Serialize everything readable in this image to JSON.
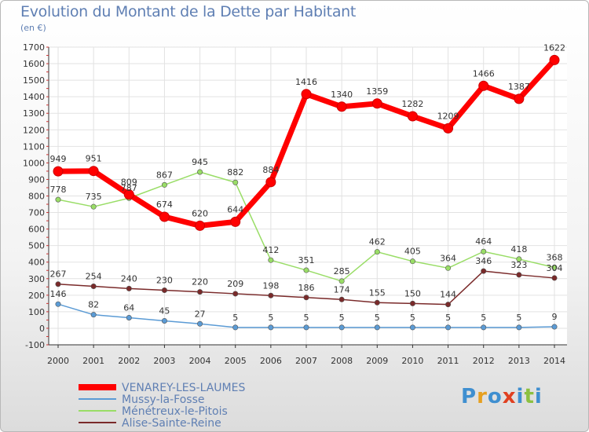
{
  "chart_data": {
    "type": "line",
    "title": "Evolution du Montant de la Dette par Habitant",
    "ylabel": "(en €)",
    "xlabel": "",
    "ylim": [
      -100,
      1700
    ],
    "yticks": [
      -100,
      0,
      100,
      200,
      300,
      400,
      500,
      600,
      700,
      800,
      900,
      1000,
      1100,
      1200,
      1300,
      1400,
      1500,
      1600,
      1700
    ],
    "categories": [
      "2000",
      "2001",
      "2002",
      "2003",
      "2004",
      "2005",
      "2006",
      "2007",
      "2008",
      "2009",
      "2010",
      "2011",
      "2012",
      "2013",
      "2014"
    ],
    "grid": true,
    "legend_position": "bottom-left",
    "series": [
      {
        "name": "VENAREY-LES-LAUMES",
        "color": "#ff0000",
        "values": [
          949,
          951,
          809,
          674,
          620,
          644,
          884,
          1416,
          1340,
          1359,
          1282,
          1209,
          1466,
          1387,
          1622
        ]
      },
      {
        "name": "Mussy-la-Fosse",
        "color": "#5b9bd5",
        "values": [
          146,
          82,
          64,
          45,
          27,
          5,
          5,
          5,
          5,
          5,
          5,
          5,
          5,
          5,
          9
        ]
      },
      {
        "name": "Ménétreux-le-Pitois",
        "color": "#99dd66",
        "values": [
          778,
          735,
          787,
          867,
          945,
          882,
          412,
          351,
          285,
          462,
          405,
          364,
          464,
          418,
          368
        ]
      },
      {
        "name": "Alise-Sainte-Reine",
        "color": "#7a2a2a",
        "values": [
          267,
          254,
          240,
          230,
          220,
          209,
          198,
          186,
          174,
          155,
          150,
          144,
          346,
          323,
          304
        ]
      }
    ]
  },
  "logo": {
    "letters": [
      "P",
      "r",
      "o",
      "x",
      "i",
      "t",
      "i"
    ],
    "colors": [
      "#3f8fd0",
      "#e6a020",
      "#3f8fd0",
      "#e04020",
      "#3f8fd0",
      "#8cc040",
      "#3f8fd0"
    ]
  }
}
